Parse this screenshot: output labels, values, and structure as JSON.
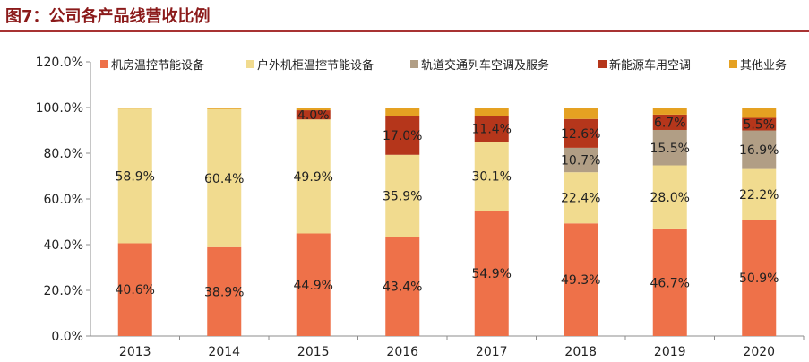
{
  "figure_title": "图7：公司各产品线营收比例",
  "colors": {
    "title": "#8b1a1a",
    "rule": "#a83232"
  },
  "chart_data": {
    "type": "bar",
    "stacked": true,
    "categories": [
      "2013",
      "2014",
      "2015",
      "2016",
      "2017",
      "2018",
      "2019",
      "2020"
    ],
    "ylim": [
      0,
      120
    ],
    "yticks": [
      "0.0%",
      "20.0%",
      "40.0%",
      "60.0%",
      "80.0%",
      "100.0%",
      "120.0%"
    ],
    "legend_position": "top",
    "grid": false,
    "series": [
      {
        "name": "机房温控节能设备",
        "color": "#ee7149",
        "values": [
          40.6,
          38.9,
          44.9,
          43.4,
          54.9,
          49.3,
          46.7,
          50.9
        ],
        "labels": [
          "40.6%",
          "38.9%",
          "44.9%",
          "43.4%",
          "54.9%",
          "49.3%",
          "46.7%",
          "50.9%"
        ]
      },
      {
        "name": "户外机柜温控节能设备",
        "color": "#f1db8f",
        "values": [
          58.9,
          60.4,
          49.9,
          35.9,
          30.1,
          22.4,
          28.0,
          22.2
        ],
        "labels": [
          "58.9%",
          "60.4%",
          "49.9%",
          "35.9%",
          "30.1%",
          "22.4%",
          "28.0%",
          "22.2%"
        ]
      },
      {
        "name": "轨道交通列车空调及服务",
        "color": "#b19e85",
        "values": [
          0,
          0,
          0,
          0,
          0,
          10.7,
          15.5,
          16.9
        ],
        "labels": [
          "",
          "",
          "",
          "",
          "",
          "10.7%",
          "15.5%",
          "16.9%"
        ]
      },
      {
        "name": "新能源车用空调",
        "color": "#b5361b",
        "values": [
          0,
          0,
          4.0,
          17.0,
          11.4,
          12.6,
          6.7,
          5.5
        ],
        "labels": [
          "",
          "",
          "4.0%",
          "17.0%",
          "11.4%",
          "12.6%",
          "6.7%",
          "5.5%"
        ]
      },
      {
        "name": "其他业务",
        "color": "#e5a122",
        "values": [
          0.5,
          0.7,
          1.2,
          3.7,
          3.6,
          5.0,
          3.1,
          4.5
        ],
        "labels": [
          "",
          "",
          "",
          "",
          "",
          "",
          "",
          ""
        ]
      }
    ]
  }
}
